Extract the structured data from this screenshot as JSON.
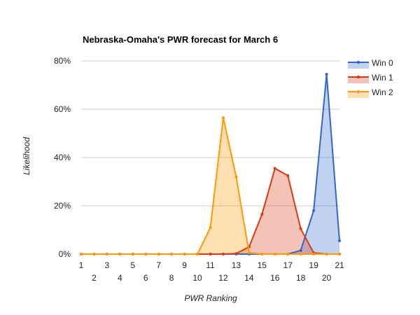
{
  "chart_data": {
    "type": "area",
    "title": "Nebraska-Omaha's PWR forecast for March 6",
    "xlabel": "PWR Ranking",
    "ylabel": "Likelihood",
    "x": [
      1,
      2,
      3,
      4,
      5,
      6,
      7,
      8,
      9,
      10,
      11,
      12,
      13,
      14,
      15,
      16,
      17,
      18,
      19,
      20,
      21
    ],
    "xlim": [
      1,
      21
    ],
    "ylim": [
      0,
      80
    ],
    "y_ticks": [
      0,
      20,
      40,
      60,
      80
    ],
    "y_tick_labels": [
      "0%",
      "20%",
      "40%",
      "60%",
      "80%"
    ],
    "x_tick_labels_row1": [
      "1",
      "3",
      "5",
      "7",
      "9",
      "11",
      "13",
      "15",
      "17",
      "19",
      "21"
    ],
    "x_tick_labels_row2": [
      "2",
      "4",
      "6",
      "8",
      "10",
      "12",
      "14",
      "16",
      "18",
      "20"
    ],
    "grid": true,
    "legend_position": "right",
    "series": [
      {
        "name": "Win 0",
        "color": "#3366cc",
        "values": [
          0,
          0,
          0,
          0,
          0,
          0,
          0,
          0,
          0,
          0,
          0,
          0,
          0,
          0,
          0,
          0,
          0,
          1.5,
          18,
          74.5,
          5.5
        ]
      },
      {
        "name": "Win 1",
        "color": "#dc3912",
        "values": [
          0,
          0,
          0,
          0,
          0,
          0,
          0,
          0,
          0,
          0,
          0,
          0,
          0.2,
          3,
          16.5,
          35.5,
          32.5,
          10.5,
          0.5,
          0,
          0
        ]
      },
      {
        "name": "Win 2",
        "color": "#ff9900",
        "values": [
          0,
          0,
          0,
          0,
          0,
          0,
          0,
          0,
          0,
          0,
          11,
          56.5,
          32,
          0.5,
          0,
          0,
          0,
          0,
          0,
          0,
          0
        ]
      }
    ]
  }
}
